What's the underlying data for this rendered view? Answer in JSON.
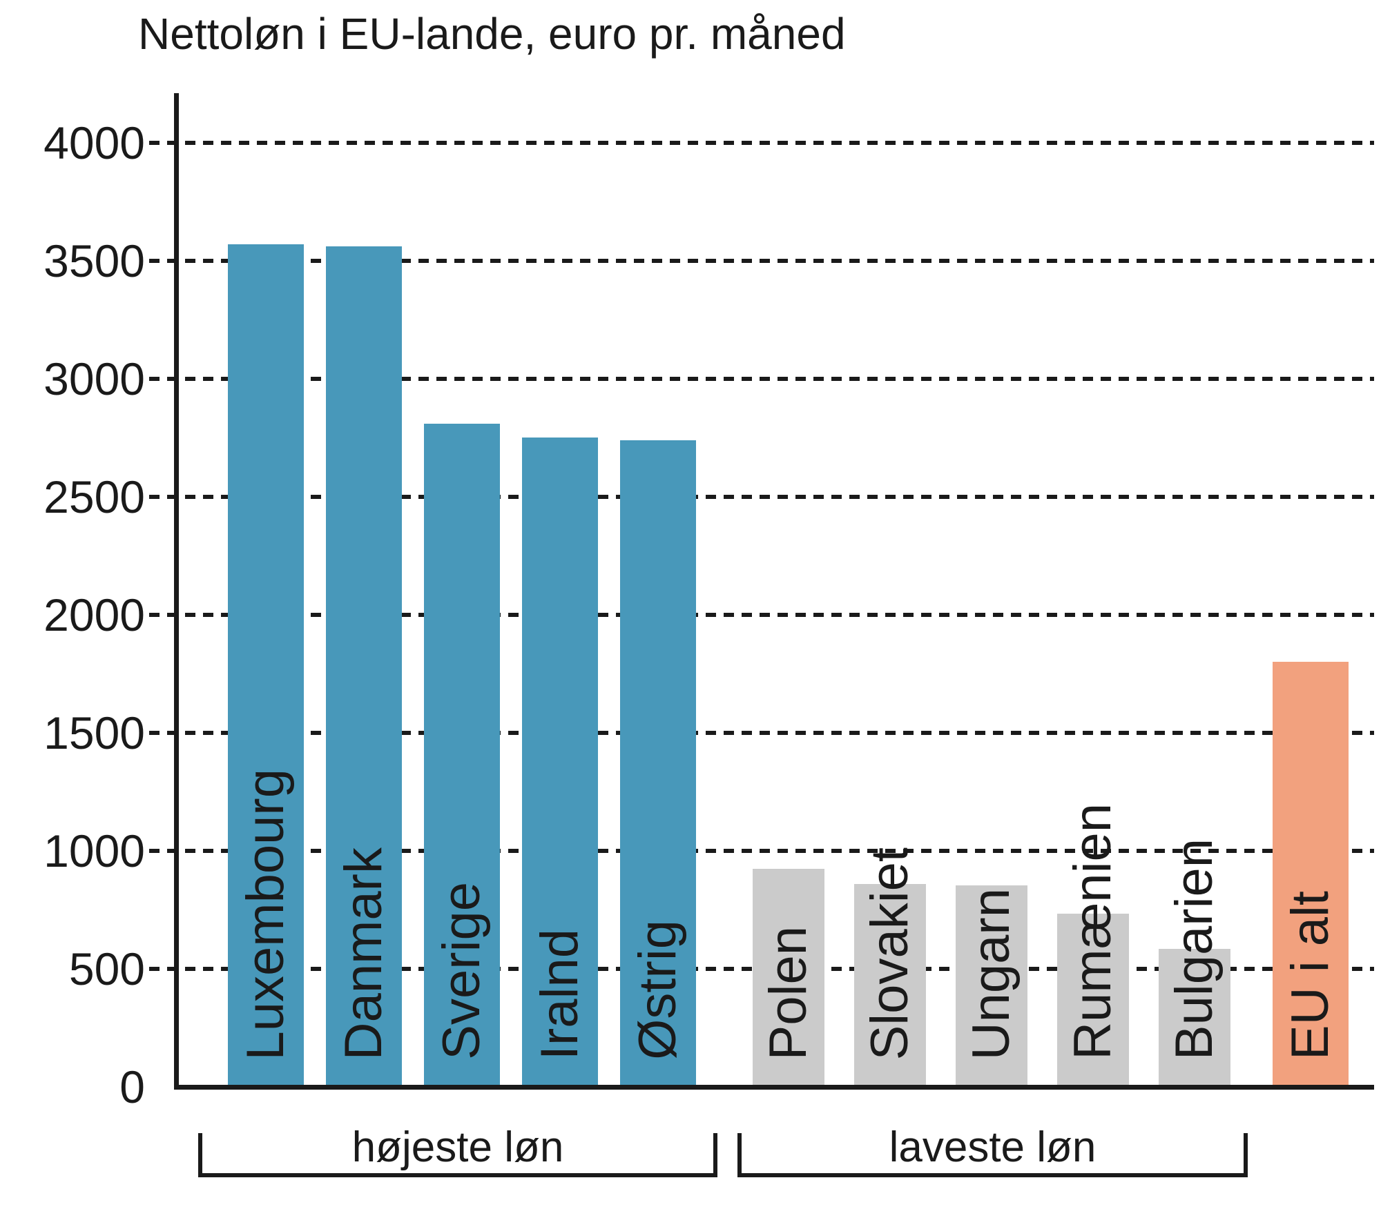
{
  "chart_data": {
    "type": "bar",
    "title": "Nettoløn i EU-lande, euro pr. måned",
    "ylabel": "",
    "xlabel": "",
    "ylim": [
      0,
      4000
    ],
    "ytick_interval": 500,
    "yticks": [
      4000,
      3500,
      3000,
      2500,
      2000,
      1500,
      1000,
      500,
      0
    ],
    "grid": "dashed-horizontal",
    "legend": "none",
    "categories": [
      "Luxembourg",
      "Danmark",
      "Sverige",
      "Iralnd",
      "Østrig",
      "Polen",
      "Slovakiet",
      "Ungarn",
      "Rumænien",
      "Bulgarien",
      "EU i alt"
    ],
    "values": [
      3570,
      3560,
      2810,
      2750,
      2740,
      925,
      860,
      855,
      735,
      585,
      1800
    ],
    "bars": [
      {
        "label": "Luxembourg",
        "value": 3570,
        "group": "højeste løn",
        "color_role": "high"
      },
      {
        "label": "Danmark",
        "value": 3560,
        "group": "højeste løn",
        "color_role": "high"
      },
      {
        "label": "Sverige",
        "value": 2810,
        "group": "højeste løn",
        "color_role": "high"
      },
      {
        "label": "Iralnd",
        "value": 2750,
        "group": "højeste løn",
        "color_role": "high"
      },
      {
        "label": "Østrig",
        "value": 2740,
        "group": "højeste løn",
        "color_role": "high"
      },
      {
        "label": "Polen",
        "value": 925,
        "group": "laveste løn",
        "color_role": "low"
      },
      {
        "label": "Slovakiet",
        "value": 860,
        "group": "laveste løn",
        "color_role": "low"
      },
      {
        "label": "Ungarn",
        "value": 855,
        "group": "laveste løn",
        "color_role": "low"
      },
      {
        "label": "Rumænien",
        "value": 735,
        "group": "laveste løn",
        "color_role": "low"
      },
      {
        "label": "Bulgarien",
        "value": 585,
        "group": "laveste løn",
        "color_role": "low"
      },
      {
        "label": "EU i alt",
        "value": 1800,
        "group": "total",
        "color_role": "eu"
      }
    ],
    "group_brackets": [
      {
        "label": "højeste løn"
      },
      {
        "label": "laveste løn"
      }
    ],
    "colors": {
      "high": "#4898BA",
      "low": "#CBCBCB",
      "eu": "#F2A17E",
      "ink": "#1A1A1A"
    }
  }
}
